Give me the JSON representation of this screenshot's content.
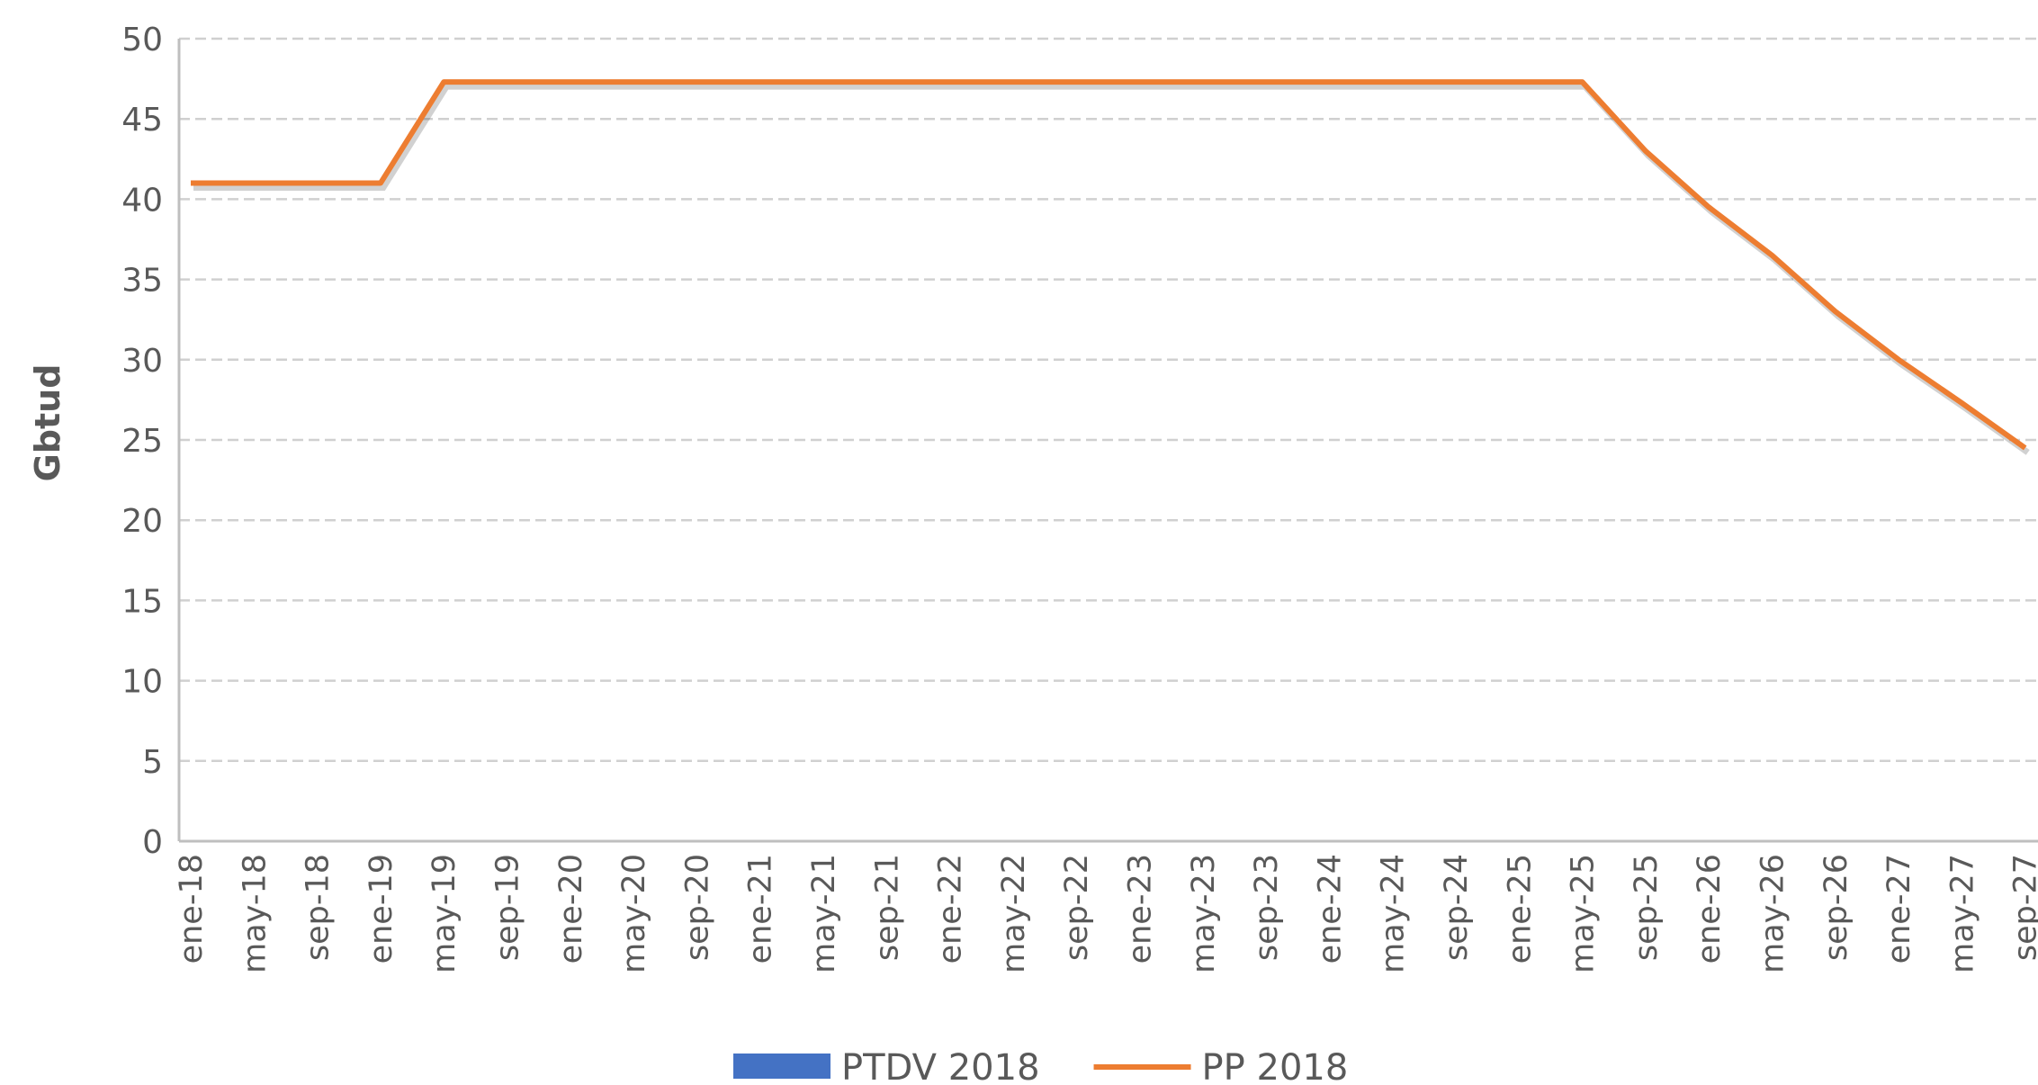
{
  "chart_data": {
    "type": "line",
    "y_label": "Gbtud",
    "categories": [
      "ene-18",
      "may-18",
      "sep-18",
      "ene-19",
      "may-19",
      "sep-19",
      "ene-20",
      "may-20",
      "sep-20",
      "ene-21",
      "may-21",
      "sep-21",
      "ene-22",
      "may-22",
      "sep-22",
      "ene-23",
      "may-23",
      "sep-23",
      "ene-24",
      "may-24",
      "sep-24",
      "ene-25",
      "may-25",
      "sep-25",
      "ene-26",
      "may-26",
      "sep-26",
      "ene-27",
      "may-27",
      "sep-27"
    ],
    "series": [
      {
        "name": "PTDV 2018",
        "color": "#4472c4",
        "kind": "bar",
        "values": [
          null,
          null,
          null,
          null,
          null,
          null,
          null,
          null,
          null,
          null,
          null,
          null,
          null,
          null,
          null,
          null,
          null,
          null,
          null,
          null,
          null,
          null,
          null,
          null,
          null,
          null,
          null,
          null,
          null,
          null
        ]
      },
      {
        "name": "PP 2018",
        "color": "#ed7d31",
        "kind": "line",
        "values": [
          41,
          41,
          41,
          41,
          47.3,
          47.3,
          47.3,
          47.3,
          47.3,
          47.3,
          47.3,
          47.3,
          47.3,
          47.3,
          47.3,
          47.3,
          47.3,
          47.3,
          47.3,
          47.3,
          47.3,
          47.3,
          47.3,
          43,
          39.5,
          36.5,
          33,
          30,
          27.3,
          24.5
        ]
      }
    ],
    "ylim": [
      0,
      50
    ],
    "yticks": [
      0,
      5,
      10,
      15,
      20,
      25,
      30,
      35,
      40,
      45,
      50
    ],
    "grid": true,
    "legend": "bottom"
  }
}
